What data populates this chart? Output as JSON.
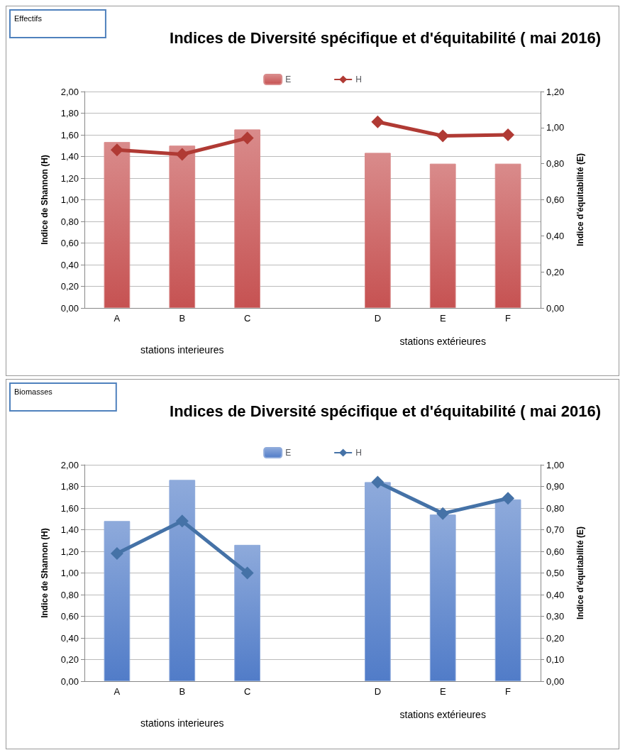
{
  "chart_data": [
    {
      "type": "bar",
      "title": "Indices de Diversité spécifique et d'équitabilité ( mai 2016)",
      "annotations": [
        "Effectifs",
        "stations interieures",
        "stations extérieures"
      ],
      "ylabel": "Indice de Shannon (H)",
      "y2label": "Indice d'équitabilité (E)",
      "categories": [
        "A",
        "B",
        "C",
        null,
        "D",
        "E",
        "F"
      ],
      "series": [
        {
          "name": "E",
          "axis": "y2",
          "color": "#d98b8b",
          "values": [
            0.92,
            0.9,
            0.99,
            null,
            0.86,
            0.8,
            0.8
          ]
        },
        {
          "name": "H",
          "type": "line",
          "color": "#b03a34",
          "values": [
            1.46,
            1.42,
            1.57,
            null,
            1.72,
            1.59,
            1.6
          ]
        }
      ],
      "ylim": [
        0,
        2
      ],
      "yticks": [
        {
          "value": 0,
          "label": "0,00"
        },
        {
          "value": 0.2,
          "label": "0,20"
        },
        {
          "value": 0.4,
          "label": "0,40"
        },
        {
          "value": 0.6,
          "label": "0,60"
        },
        {
          "value": 0.8,
          "label": "0,80"
        },
        {
          "value": 1,
          "label": "1,00"
        },
        {
          "value": 1.2,
          "label": "1,20"
        },
        {
          "value": 1.4,
          "label": "1,40"
        },
        {
          "value": 1.6,
          "label": "1,60"
        },
        {
          "value": 1.8,
          "label": "1,80"
        },
        {
          "value": 2,
          "label": "2,00"
        }
      ],
      "y2lim": [
        0,
        1.2
      ],
      "y2ticks": [
        {
          "value": 0,
          "label": "0,00"
        },
        {
          "value": 0.2,
          "label": "0,20"
        },
        {
          "value": 0.4,
          "label": "0,40"
        },
        {
          "value": 0.6,
          "label": "0,60"
        },
        {
          "value": 0.8,
          "label": "0,80"
        },
        {
          "value": 1,
          "label": "1,00"
        },
        {
          "value": 1.2,
          "label": "1,20"
        }
      ],
      "grid": "y",
      "legend": "top",
      "marker": "diamond"
    },
    {
      "type": "bar",
      "title": "Indices de Diversité spécifique et d'équitabilité ( mai 2016)",
      "annotations": [
        "Biomasses",
        "stations interieures",
        "stations extérieures"
      ],
      "ylabel": "Indice de Shannon (H)",
      "y2label": "Indice d'équitabilité (E)",
      "categories": [
        "A",
        "B",
        "C",
        null,
        "D",
        "E",
        "F"
      ],
      "series": [
        {
          "name": "E",
          "axis": "y2",
          "color": "#8eaadb",
          "values": [
            0.74,
            0.93,
            0.63,
            null,
            0.92,
            0.77,
            0.84
          ]
        },
        {
          "name": "H",
          "type": "line",
          "color": "#4572a7",
          "values": [
            1.18,
            1.48,
            1.0,
            null,
            1.84,
            1.55,
            1.69
          ]
        }
      ],
      "ylim": [
        0,
        2
      ],
      "yticks": [
        {
          "value": 0,
          "label": "0,00"
        },
        {
          "value": 0.2,
          "label": "0,20"
        },
        {
          "value": 0.4,
          "label": "0,40"
        },
        {
          "value": 0.6,
          "label": "0,60"
        },
        {
          "value": 0.8,
          "label": "0,80"
        },
        {
          "value": 1,
          "label": "1,00"
        },
        {
          "value": 1.2,
          "label": "1,20"
        },
        {
          "value": 1.4,
          "label": "1,40"
        },
        {
          "value": 1.6,
          "label": "1,60"
        },
        {
          "value": 1.8,
          "label": "1,80"
        },
        {
          "value": 2,
          "label": "2,00"
        }
      ],
      "y2lim": [
        0,
        1
      ],
      "y2ticks": [
        {
          "value": 0,
          "label": "0,00"
        },
        {
          "value": 0.1,
          "label": "0,10"
        },
        {
          "value": 0.2,
          "label": "0,20"
        },
        {
          "value": 0.3,
          "label": "0,30"
        },
        {
          "value": 0.4,
          "label": "0,40"
        },
        {
          "value": 0.5,
          "label": "0,50"
        },
        {
          "value": 0.6,
          "label": "0,60"
        },
        {
          "value": 0.7,
          "label": "0,70"
        },
        {
          "value": 0.8,
          "label": "0,80"
        },
        {
          "value": 0.9,
          "label": "0,90"
        },
        {
          "value": 1,
          "label": "1,00"
        }
      ],
      "grid": "y",
      "legend": "top",
      "marker": "diamond"
    }
  ]
}
